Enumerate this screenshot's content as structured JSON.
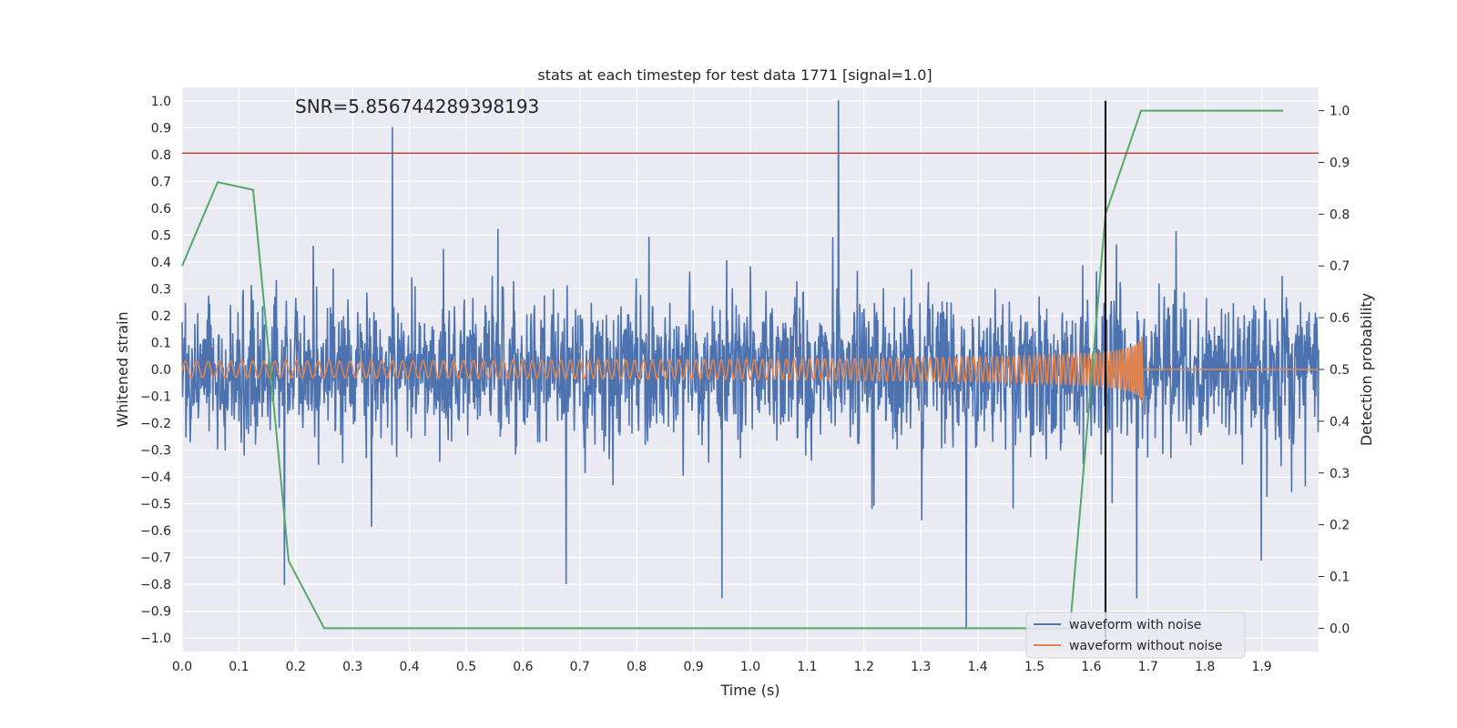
{
  "chart_data": {
    "type": "line",
    "title": "stats at each timestep for test data 1771 [signal=1.0]",
    "xlabel": "Time (s)",
    "ylabel": "Whitened strain",
    "ylabel_right": "Detection probability",
    "annotation": "SNR=5.856744289398193",
    "xlim": [
      0.0,
      2.0
    ],
    "ylim": [
      -1.05,
      1.05
    ],
    "ylim_right": [
      -0.045,
      1.045
    ],
    "x_ticks": [
      "0.0",
      "0.1",
      "0.2",
      "0.3",
      "0.4",
      "0.5",
      "0.6",
      "0.7",
      "0.8",
      "0.9",
      "1.0",
      "1.1",
      "1.2",
      "1.3",
      "1.4",
      "1.5",
      "1.6",
      "1.7",
      "1.8",
      "1.9"
    ],
    "y_ticks": [
      "1.0",
      "0.9",
      "0.8",
      "0.7",
      "0.6",
      "0.5",
      "0.4",
      "0.3",
      "0.2",
      "0.1",
      "0.0",
      "−0.1",
      "−0.2",
      "−0.3",
      "−0.4",
      "−0.5",
      "−0.6",
      "−0.7",
      "−0.8",
      "−0.9",
      "−1.0"
    ],
    "y_ticks_right": [
      "1.0",
      "0.9",
      "0.8",
      "0.7",
      "0.6",
      "0.5",
      "0.4",
      "0.3",
      "0.2",
      "0.1",
      "0.0"
    ],
    "grid": true,
    "legend_position": "lower-right",
    "threshold_line": {
      "y": 0.805,
      "color": "#c03d3e"
    },
    "detection_time_line": {
      "x": 1.625,
      "y_range": [
        -1.0,
        1.0
      ],
      "color": "#000000"
    },
    "series": [
      {
        "name": "waveform with noise",
        "color": "#4c72b0",
        "axis": "left",
        "description": "dense noisy strain signal over 0–2 s",
        "notable_peaks": [
          {
            "x": 0.37,
            "y": 0.9
          },
          {
            "x": 1.155,
            "y": 1.0
          },
          {
            "x": 1.38,
            "y": -0.96
          },
          {
            "x": 0.18,
            "y": -0.8
          },
          {
            "x": 0.95,
            "y": -0.85
          },
          {
            "x": 1.68,
            "y": -0.85
          }
        ]
      },
      {
        "name": "waveform without noise",
        "color": "#dd8452",
        "axis": "left",
        "description": "chirp signal with growing frequency and amplitude ending near 1.69 s",
        "amplitude_start": 0.03,
        "amplitude_peak": 0.2,
        "end_time": 1.69
      },
      {
        "name": "detection probability",
        "color": "#55a868",
        "axis": "right",
        "x": [
          0.0,
          0.0625,
          0.125,
          0.1875,
          0.25,
          0.3125,
          0.375,
          0.4375,
          0.5,
          0.5625,
          0.625,
          0.6875,
          0.75,
          0.8125,
          0.875,
          0.9375,
          1.0,
          1.0625,
          1.125,
          1.1875,
          1.25,
          1.3125,
          1.375,
          1.4375,
          1.5,
          1.5625,
          1.625,
          1.6875,
          1.75,
          1.8125,
          1.875,
          1.9375
        ],
        "values": [
          0.7,
          0.862,
          0.847,
          0.13,
          0.0,
          0.0,
          0.0,
          0.0,
          0.0,
          0.0,
          0.0,
          0.0,
          0.0,
          0.0,
          0.0,
          0.0,
          0.0,
          0.0,
          0.0,
          0.0,
          0.0,
          0.0,
          0.0,
          0.0,
          0.0,
          0.0,
          0.8,
          1.0,
          1.0,
          1.0,
          1.0,
          1.0
        ]
      }
    ]
  },
  "colors": {
    "plot_background": "#eaeaf2",
    "grid": "#ffffff"
  }
}
